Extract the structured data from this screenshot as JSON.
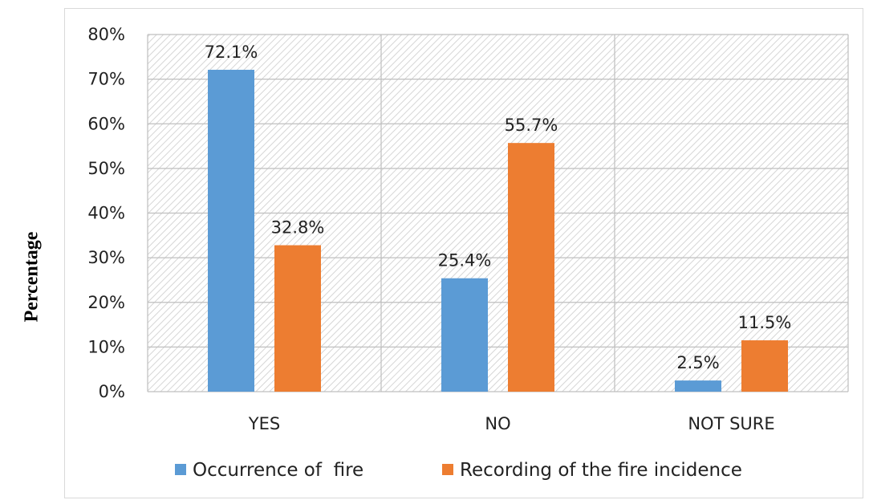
{
  "chart_data": {
    "type": "bar",
    "title": "",
    "xlabel": "",
    "ylabel": "Percentage",
    "categories": [
      "YES",
      "NO",
      "NOT SURE"
    ],
    "series": [
      {
        "name": "Occurrence of  fire",
        "values": [
          72.1,
          25.4,
          2.5
        ],
        "color": "#5b9bd5"
      },
      {
        "name": "Recording of the fire incidence",
        "values": [
          32.8,
          55.7,
          11.5
        ],
        "color": "#ed7d31"
      }
    ],
    "data_labels": [
      [
        "72.1%",
        "25.4%",
        "2.5%"
      ],
      [
        "32.8%",
        "55.7%",
        "11.5%"
      ]
    ],
    "ylim": [
      0,
      80
    ],
    "yticks": [
      0,
      10,
      20,
      30,
      40,
      50,
      60,
      70,
      80
    ],
    "ytick_labels": [
      "0%",
      "10%",
      "20%",
      "30%",
      "40%",
      "50%",
      "60%",
      "70%",
      "80%"
    ],
    "grid": true,
    "plot_pattern": "diagonal hatch",
    "legend_position": "bottom"
  }
}
